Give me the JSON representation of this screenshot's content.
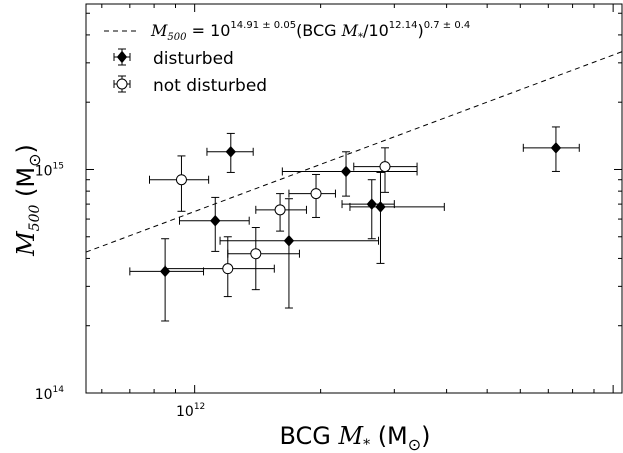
{
  "chart_data": {
    "type": "scatter",
    "x_scale": "log",
    "y_scale": "log",
    "xlim": [
      550000000000.0,
      10500000000000.0
    ],
    "ylim": [
      100000000000000.0,
      5500000000000000.0
    ],
    "x_tick_labels": [
      {
        "value": 1000000000000.0,
        "label": "10",
        "exp": "12"
      }
    ],
    "y_tick_labels": [
      {
        "value": 100000000000000.0,
        "label": "10",
        "exp": "14"
      },
      {
        "value": 1000000000000000.0,
        "label": "10",
        "exp": "15"
      }
    ],
    "xlabel": {
      "name": "BCG ",
      "var": "M",
      "sub": "*",
      "unit": " (M",
      "sun": "⊙",
      "close": ")"
    },
    "ylabel": {
      "var": "M",
      "sub": "500",
      "unit": " (M",
      "sun": "⊙",
      "close": ")"
    },
    "grid": false,
    "legend_position": "top-left",
    "fit_line": {
      "label_var": "M",
      "label_sub": "500",
      "label_eq": " = 10",
      "label_exp1": "14.91 ± 0.05",
      "label_mid1": "(BCG ",
      "label_var2": "M",
      "label_sub2": "*",
      "label_mid2": "/10",
      "label_exp2": "12.14",
      "label_mid3": ")",
      "label_exp3": "0.7 ± 0.4",
      "normalization": 813000000000000.0,
      "pivot": 1380000000000.0,
      "slope": 0.7,
      "style": "dashed"
    },
    "series": [
      {
        "name": "disturbed",
        "marker": "diamond-filled",
        "points": [
          {
            "x": 850000000000.0,
            "y": 350000000000000.0,
            "xerr": [
              700000000000.0,
              1050000000000.0
            ],
            "yerr": [
              210000000000000.0,
              490000000000000.0
            ]
          },
          {
            "x": 1120000000000.0,
            "y": 590000000000000.0,
            "xerr": [
              920000000000.0,
              1350000000000.0
            ],
            "yerr": [
              430000000000000.0,
              750000000000000.0
            ]
          },
          {
            "x": 1220000000000.0,
            "y": 1200000000000000.0,
            "xerr": [
              1070000000000.0,
              1380000000000.0
            ],
            "yerr": [
              970000000000000.0,
              1450000000000000.0
            ]
          },
          {
            "x": 1680000000000.0,
            "y": 480000000000000.0,
            "xerr": [
              1150000000000.0,
              2750000000000.0
            ],
            "yerr": [
              240000000000000.0,
              740000000000000.0
            ]
          },
          {
            "x": 2300000000000.0,
            "y": 980000000000000.0,
            "xerr": [
              1620000000000.0,
              3400000000000.0
            ],
            "yerr": [
              760000000000000.0,
              1200000000000000.0
            ]
          },
          {
            "x": 2650000000000.0,
            "y": 700000000000000.0,
            "xerr": [
              2250000000000.0,
              3000000000000.0
            ],
            "yerr": [
              490000000000000.0,
              900000000000000.0
            ]
          },
          {
            "x": 2780000000000.0,
            "y": 680000000000000.0,
            "xerr": [
              2350000000000.0,
              3950000000000.0
            ],
            "yerr": [
              380000000000000.0,
              970000000000000.0
            ]
          },
          {
            "x": 7300000000000.0,
            "y": 1250000000000000.0,
            "xerr": [
              6100000000000.0,
              8300000000000.0
            ],
            "yerr": [
              980000000000000.0,
              1550000000000000.0
            ]
          }
        ]
      },
      {
        "name": "not disturbed",
        "marker": "circle-open",
        "points": [
          {
            "x": 930000000000.0,
            "y": 900000000000000.0,
            "xerr": [
              780000000000.0,
              1080000000000.0
            ],
            "yerr": [
              650000000000000.0,
              1150000000000000.0
            ]
          },
          {
            "x": 1200000000000.0,
            "y": 360000000000000.0,
            "xerr": [
              850000000000.0,
              1550000000000.0
            ],
            "yerr": [
              270000000000000.0,
              500000000000000.0
            ]
          },
          {
            "x": 1400000000000.0,
            "y": 420000000000000.0,
            "xerr": [
              1200000000000.0,
              1780000000000.0
            ],
            "yerr": [
              290000000000000.0,
              550000000000000.0
            ]
          },
          {
            "x": 1600000000000.0,
            "y": 660000000000000.0,
            "xerr": [
              1400000000000.0,
              1850000000000.0
            ],
            "yerr": [
              530000000000000.0,
              780000000000000.0
            ]
          },
          {
            "x": 1950000000000.0,
            "y": 780000000000000.0,
            "xerr": [
              1680000000000.0,
              2170000000000.0
            ],
            "yerr": [
              610000000000000.0,
              950000000000000.0
            ]
          },
          {
            "x": 2850000000000.0,
            "y": 1030000000000000.0,
            "xerr": [
              2400000000000.0,
              3400000000000.0
            ],
            "yerr": [
              790000000000000.0,
              1250000000000000.0
            ]
          }
        ]
      }
    ]
  }
}
